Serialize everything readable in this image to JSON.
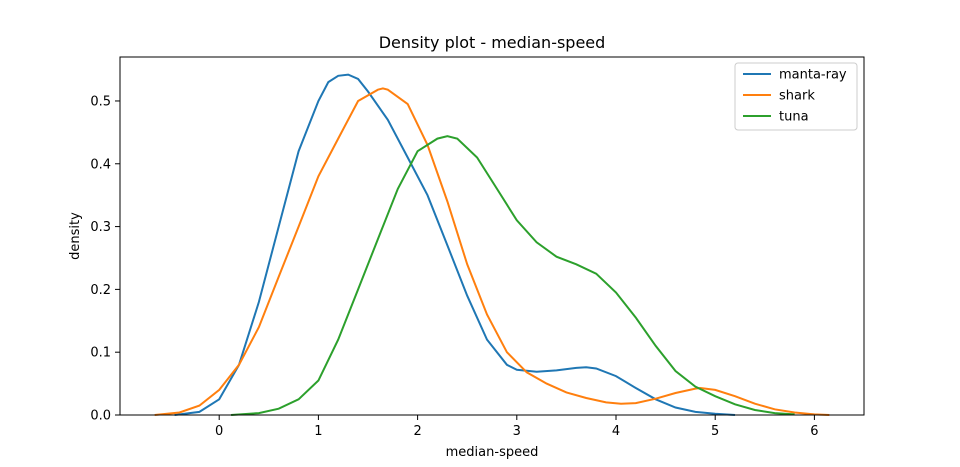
{
  "chart_data": {
    "type": "line",
    "title": "Density plot - median-speed",
    "xlabel": "median-speed",
    "ylabel": "density",
    "xlim": [
      -1.0,
      6.5
    ],
    "ylim": [
      0,
      0.57
    ],
    "xticks": [
      0,
      1,
      2,
      3,
      4,
      5,
      6
    ],
    "yticks": [
      0.0,
      0.1,
      0.2,
      0.3,
      0.4,
      0.5
    ],
    "ytick_labels": [
      "0.0",
      "0.1",
      "0.2",
      "0.3",
      "0.4",
      "0.5"
    ],
    "grid": false,
    "legend_position": "top-right",
    "series": [
      {
        "name": "manta-ray",
        "color": "#1f77b4",
        "x": [
          -0.45,
          -0.2,
          0.0,
          0.2,
          0.4,
          0.6,
          0.8,
          1.0,
          1.1,
          1.2,
          1.3,
          1.4,
          1.5,
          1.7,
          1.9,
          2.1,
          2.3,
          2.5,
          2.7,
          2.9,
          3.0,
          3.2,
          3.4,
          3.6,
          3.7,
          3.8,
          4.0,
          4.2,
          4.4,
          4.6,
          4.8,
          5.0,
          5.2
        ],
        "y": [
          0.0,
          0.005,
          0.025,
          0.08,
          0.18,
          0.3,
          0.42,
          0.5,
          0.53,
          0.54,
          0.542,
          0.535,
          0.515,
          0.47,
          0.41,
          0.35,
          0.27,
          0.19,
          0.12,
          0.08,
          0.072,
          0.069,
          0.071,
          0.075,
          0.076,
          0.074,
          0.062,
          0.043,
          0.025,
          0.012,
          0.005,
          0.002,
          0.0
        ]
      },
      {
        "name": "shark",
        "color": "#ff7f0e",
        "x": [
          -0.65,
          -0.4,
          -0.2,
          0.0,
          0.2,
          0.4,
          0.6,
          0.8,
          1.0,
          1.2,
          1.4,
          1.6,
          1.65,
          1.7,
          1.9,
          2.1,
          2.3,
          2.5,
          2.7,
          2.9,
          3.1,
          3.3,
          3.5,
          3.7,
          3.9,
          4.05,
          4.2,
          4.4,
          4.6,
          4.8,
          4.85,
          5.0,
          5.2,
          5.4,
          5.6,
          5.8,
          6.0,
          6.15
        ],
        "y": [
          0.0,
          0.004,
          0.015,
          0.04,
          0.08,
          0.14,
          0.22,
          0.3,
          0.38,
          0.44,
          0.5,
          0.518,
          0.52,
          0.518,
          0.495,
          0.43,
          0.34,
          0.24,
          0.16,
          0.1,
          0.068,
          0.05,
          0.036,
          0.027,
          0.02,
          0.018,
          0.019,
          0.026,
          0.035,
          0.042,
          0.043,
          0.04,
          0.03,
          0.018,
          0.009,
          0.004,
          0.001,
          0.0
        ]
      },
      {
        "name": "tuna",
        "color": "#2ca02c",
        "x": [
          0.12,
          0.4,
          0.6,
          0.8,
          1.0,
          1.2,
          1.4,
          1.6,
          1.8,
          2.0,
          2.2,
          2.3,
          2.4,
          2.6,
          2.8,
          3.0,
          3.2,
          3.4,
          3.6,
          3.8,
          4.0,
          4.2,
          4.4,
          4.6,
          4.8,
          5.0,
          5.2,
          5.4,
          5.6,
          5.8
        ],
        "y": [
          0.0,
          0.003,
          0.01,
          0.025,
          0.055,
          0.12,
          0.2,
          0.28,
          0.36,
          0.42,
          0.44,
          0.444,
          0.44,
          0.41,
          0.36,
          0.31,
          0.275,
          0.252,
          0.24,
          0.225,
          0.195,
          0.155,
          0.11,
          0.07,
          0.045,
          0.03,
          0.017,
          0.008,
          0.003,
          0.001
        ]
      }
    ]
  }
}
